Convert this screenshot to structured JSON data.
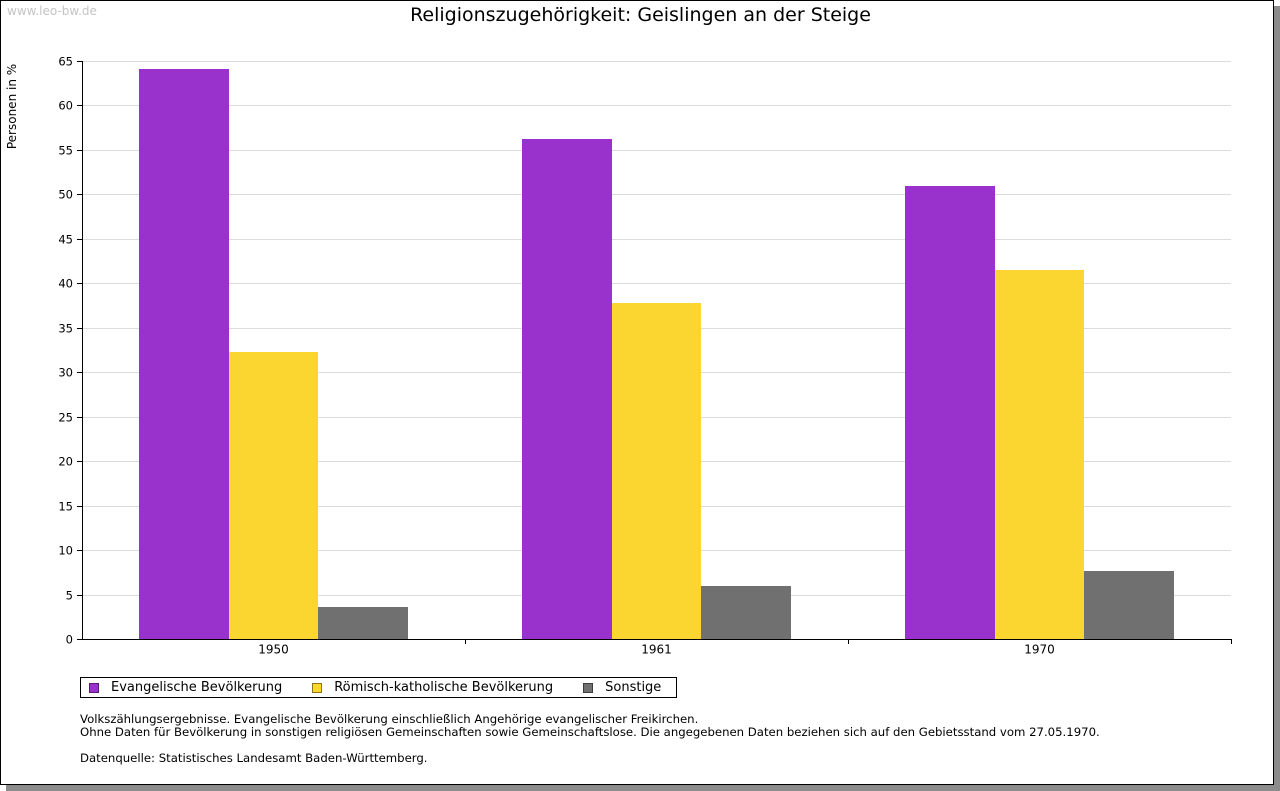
{
  "watermark": "www.leo-bw.de",
  "colors": {
    "axis": "#000000",
    "grid": "#dcdcdc",
    "watermark": "#c4c4c4",
    "shadow": "#8c8c8c"
  },
  "chart_data": {
    "type": "bar",
    "title": "Religionszugehörigkeit: Geislingen an der Steige",
    "ylabel": "Personen in %",
    "ylim": [
      0,
      65
    ],
    "yticks": [
      0,
      5,
      10,
      15,
      20,
      25,
      30,
      35,
      40,
      45,
      50,
      55,
      60,
      65
    ],
    "grid": true,
    "legend_position": "bottom-left",
    "categories": [
      "1950",
      "1961",
      "1970"
    ],
    "series": [
      {
        "name": "Evangelische Bevölkerung",
        "color": "#9932CC",
        "values": [
          64.1,
          56.2,
          50.9
        ]
      },
      {
        "name": "Römisch-katholische Bevölkerung",
        "color": "#FCD630",
        "values": [
          32.3,
          37.8,
          41.5
        ]
      },
      {
        "name": "Sonstige",
        "color": "#707070",
        "values": [
          3.6,
          6.0,
          7.6
        ]
      }
    ]
  },
  "notes": {
    "line1": "Volkszählungsergebnisse. Evangelische Bevölkerung einschließlich Angehörige evangelischer Freikirchen.",
    "line2": "Ohne Daten für Bevölkerung in sonstigen religiösen Gemeinschaften sowie Gemeinschaftslose. Die angegebenen Daten beziehen sich auf den Gebietsstand vom 27.05.1970.",
    "source": "Datenquelle: Statistisches Landesamt Baden-Württemberg."
  }
}
